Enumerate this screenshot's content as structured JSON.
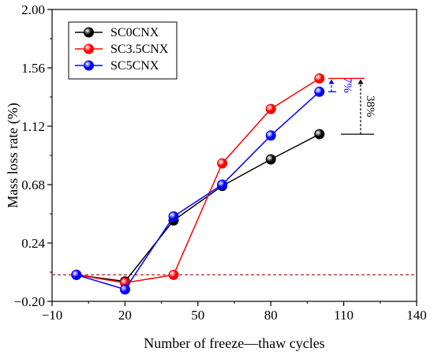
{
  "chart_data": {
    "type": "line",
    "title": "",
    "xlabel": "Number of freeze—thaw cycles",
    "ylabel": "Mass loss rate (%)",
    "xlim": [
      -10,
      140
    ],
    "ylim": [
      -0.2,
      2.0
    ],
    "xticks": [
      -10,
      20,
      50,
      80,
      110,
      140
    ],
    "xtick_labels": [
      "−10",
      "20",
      "50",
      "80",
      "110",
      "140"
    ],
    "yticks": [
      -0.2,
      0.24,
      0.68,
      1.12,
      1.56,
      2.0
    ],
    "ytick_labels": [
      "−0.20",
      "0.24",
      "0.68",
      "1.12",
      "1.56",
      "2.00"
    ],
    "x": [
      0,
      20,
      40,
      60,
      80,
      100
    ],
    "series": [
      {
        "name": "SC0CNX",
        "color": "#000000",
        "values": [
          0.0,
          -0.05,
          0.41,
          0.67,
          0.87,
          1.06
        ]
      },
      {
        "name": "SC3.5CNX",
        "color": "#ff0000",
        "values": [
          0.0,
          -0.06,
          0.0,
          0.84,
          1.25,
          1.48
        ]
      },
      {
        "name": "SC5CNX",
        "color": "#0000ff",
        "values": [
          0.0,
          -0.11,
          0.44,
          0.68,
          1.05,
          1.38
        ]
      }
    ],
    "reference_line": {
      "y": 0.0,
      "color": "#b22222",
      "style": "dashed"
    },
    "annotations": [
      {
        "label": "7%",
        "color": "#0000ff"
      },
      {
        "label": "38%",
        "color": "#000000"
      }
    ],
    "legend_position": "top-left",
    "grid": false
  }
}
